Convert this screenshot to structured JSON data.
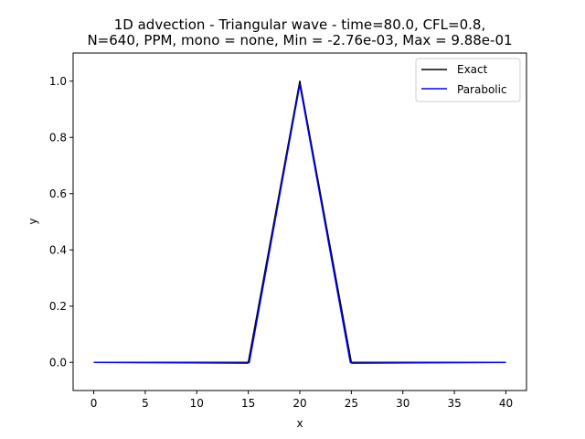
{
  "chart_data": {
    "type": "line",
    "title": "1D advection - Triangular wave - time=80.0, CFL=0.8,\nN=640, PPM, mono = none, Min = -2.76e-03, Max = 9.88e-01",
    "title_lines": [
      "1D advection - Triangular wave - time=80.0, CFL=0.8,",
      "N=640, PPM, mono = none, Min = -2.76e-03, Max = 9.88e-01"
    ],
    "xlabel": "x",
    "ylabel": "y",
    "xlim": [
      -2,
      42
    ],
    "ylim": [
      -0.1,
      1.1
    ],
    "xticks": [
      0,
      5,
      10,
      15,
      20,
      25,
      30,
      35,
      40
    ],
    "xtick_labels": [
      "0",
      "5",
      "10",
      "15",
      "20",
      "25",
      "30",
      "35",
      "40"
    ],
    "yticks": [
      0.0,
      0.2,
      0.4,
      0.6,
      0.8,
      1.0
    ],
    "ytick_labels": [
      "0.0",
      "0.2",
      "0.4",
      "0.6",
      "0.8",
      "1.0"
    ],
    "grid": false,
    "legend_position": "top-right",
    "series": [
      {
        "name": "Exact",
        "color": "#000000",
        "x": [
          0,
          15,
          20,
          25,
          40
        ],
        "y": [
          0,
          0,
          1,
          0,
          0
        ]
      },
      {
        "name": "Parabolic",
        "color": "#0000ff",
        "x": [
          0,
          14.95,
          15.1,
          20.0,
          24.9,
          25.05,
          40
        ],
        "y": [
          0,
          -0.0028,
          0.0,
          0.988,
          0.0,
          -0.0028,
          0
        ]
      }
    ]
  }
}
